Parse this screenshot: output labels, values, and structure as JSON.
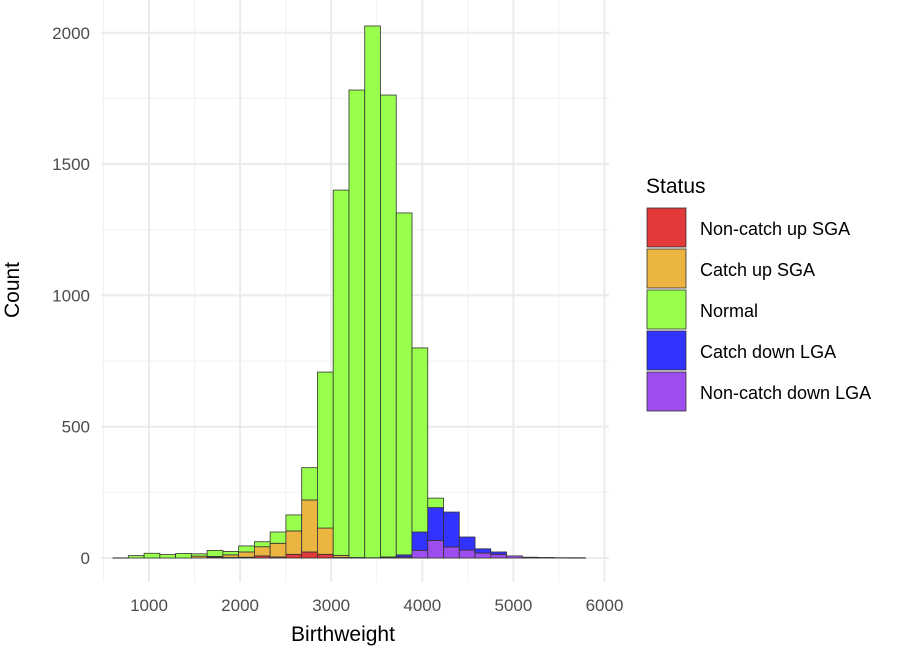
{
  "chart_data": {
    "type": "bar",
    "subtype": "stacked-histogram",
    "xlabel": "Birthweight",
    "ylabel": "Count",
    "xlim": [
      500,
      6050
    ],
    "ylim": [
      0,
      2200
    ],
    "x_ticks": [
      1000,
      2000,
      3000,
      4000,
      5000,
      6000
    ],
    "y_ticks": [
      0,
      500,
      1000,
      1500,
      2000
    ],
    "grid": true,
    "bin_start": 600,
    "bin_width": 173,
    "legend": {
      "title": "Status",
      "placement": "right",
      "entries": [
        "Non-catch up SGA",
        "Catch up SGA",
        "Normal",
        "Catch down LGA",
        "Non-catch down LGA"
      ]
    },
    "stack_order_bottom_to_top": [
      "Non-catch up SGA",
      "Catch up SGA",
      "Non-catch down LGA",
      "Catch down LGA",
      "Normal"
    ],
    "series": [
      {
        "name": "Non-catch up SGA",
        "color": "#E23A3A",
        "values": [
          0,
          0,
          0,
          0,
          0,
          0,
          4,
          2,
          3,
          8,
          4,
          14,
          23,
          14,
          2,
          0,
          0,
          0,
          0,
          0,
          0,
          0,
          0,
          0,
          0,
          0,
          0,
          0,
          0,
          0
        ]
      },
      {
        "name": "Catch up SGA",
        "color": "#ECB441",
        "values": [
          0,
          0,
          0,
          0,
          0,
          7,
          2,
          10,
          20,
          35,
          52,
          89,
          198,
          100,
          8,
          2,
          0,
          0,
          0,
          0,
          0,
          0,
          0,
          0,
          0,
          0,
          0,
          0,
          0,
          0
        ]
      },
      {
        "name": "Normal",
        "color": "#99FF4D",
        "values": [
          0,
          9,
          18,
          13,
          17,
          9,
          23,
          13,
          23,
          19,
          43,
          61,
          123,
          594,
          1391,
          1780,
          2025,
          1759,
          1302,
          701,
          36,
          0,
          0,
          0,
          0,
          0,
          0,
          0,
          0,
          0
        ]
      },
      {
        "name": "Catch down LGA",
        "color": "#3333FF",
        "values": [
          0,
          0,
          0,
          0,
          0,
          0,
          0,
          0,
          0,
          0,
          0,
          0,
          0,
          0,
          0,
          0,
          1,
          3,
          8,
          70,
          125,
          133,
          50,
          16,
          9,
          0,
          0,
          0,
          0,
          0
        ]
      },
      {
        "name": "Non-catch down LGA",
        "color": "#9E4DEE",
        "values": [
          0,
          0,
          0,
          0,
          0,
          0,
          0,
          0,
          0,
          0,
          0,
          0,
          0,
          0,
          0,
          0,
          0,
          1,
          4,
          29,
          67,
          42,
          30,
          19,
          14,
          8,
          3,
          2,
          1,
          1
        ]
      }
    ]
  }
}
